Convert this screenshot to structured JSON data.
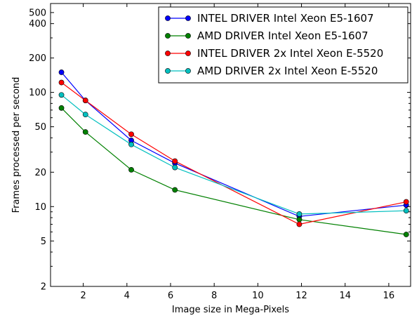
{
  "chart_data": {
    "type": "line",
    "xlabel": "Image size in Mega-Pixels",
    "ylabel": "Frames processed per second",
    "xlim": [
      0.5,
      17
    ],
    "ylim": [
      2,
      600
    ],
    "yscale": "log",
    "grid": false,
    "legend_position": "top-right",
    "x_ticks": [
      2,
      4,
      6,
      8,
      10,
      12,
      14,
      16
    ],
    "y_ticks": [
      2,
      5,
      10,
      20,
      50,
      100,
      200,
      400,
      500
    ],
    "x_tick_labels": [
      "2",
      "4",
      "6",
      "8",
      "10",
      "12",
      "14",
      "16"
    ],
    "y_tick_labels": [
      "2",
      "5",
      "10",
      "20",
      "50",
      "100",
      "200",
      "400",
      "500"
    ],
    "series": [
      {
        "name": "INTEL DRIVER Intel Xeon E5-1607",
        "color": "#0000ff",
        "x": [
          1.0,
          2.1,
          4.2,
          6.2,
          11.9,
          16.8
        ],
        "y": [
          150,
          85,
          38,
          24,
          8.2,
          10.3
        ]
      },
      {
        "name": "AMD DRIVER Intel Xeon E5-1607",
        "color": "#008000",
        "x": [
          1.0,
          2.1,
          4.2,
          6.2,
          11.9,
          16.8
        ],
        "y": [
          73,
          45,
          21,
          14,
          7.7,
          5.7
        ]
      },
      {
        "name": "INTEL DRIVER 2x Intel Xeon E-5520",
        "color": "#ff0000",
        "x": [
          1.0,
          2.1,
          4.2,
          6.2,
          11.9,
          16.8
        ],
        "y": [
          122,
          85,
          43,
          25,
          7.0,
          11.0
        ]
      },
      {
        "name": "AMD DRIVER 2x Intel Xeon E-5520",
        "color": "#00bfbf",
        "x": [
          1.0,
          2.1,
          4.2,
          6.2,
          11.9,
          16.8
        ],
        "y": [
          95,
          64,
          35,
          22,
          8.6,
          9.2
        ]
      }
    ]
  }
}
